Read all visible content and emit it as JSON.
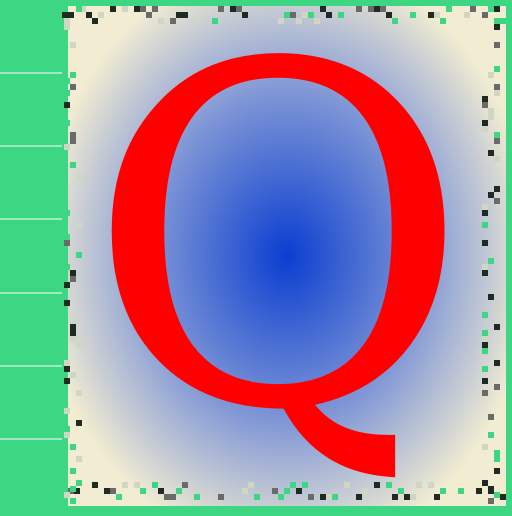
{
  "tile": {
    "glyph": "Q",
    "glyph_color": "#ff0000",
    "background_center_color": "#0a3ed0",
    "background_edge_color": "#f1ecd2",
    "border_color": "#3dd682",
    "frame_noise_colors": [
      "#1e2a22",
      "#6a6a6a",
      "#cfd6c2",
      "#3dd682"
    ]
  },
  "side_strip": {
    "color": "#3dd682",
    "divider_color": "#9fe9c0",
    "cells": 7
  }
}
